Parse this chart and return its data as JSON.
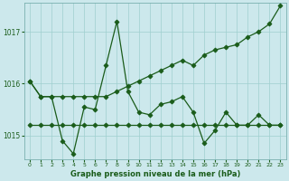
{
  "background_color": "#cce8ec",
  "plot_bg_color": "#cce8ec",
  "line_color": "#1a5c1a",
  "grid_color": "#9fcfcf",
  "xlabel": "Graphe pression niveau de la mer (hPa)",
  "ylim": [
    1014.55,
    1017.55
  ],
  "xlim": [
    -0.5,
    23.5
  ],
  "yticks": [
    1015,
    1016,
    1017
  ],
  "xticks": [
    0,
    1,
    2,
    3,
    4,
    5,
    6,
    7,
    8,
    9,
    10,
    11,
    12,
    13,
    14,
    15,
    16,
    17,
    18,
    19,
    20,
    21,
    22,
    23
  ],
  "series": [
    {
      "x": [
        0,
        1,
        2,
        3,
        4,
        5,
        6,
        7,
        8,
        9,
        10,
        11,
        12,
        13,
        14,
        15,
        16,
        17,
        18,
        19,
        20,
        21,
        22,
        23
      ],
      "y": [
        1015.2,
        1015.2,
        1015.2,
        1015.2,
        1015.2,
        1015.2,
        1015.2,
        1015.2,
        1015.2,
        1015.2,
        1015.2,
        1015.2,
        1015.2,
        1015.2,
        1015.2,
        1015.2,
        1015.2,
        1015.2,
        1015.2,
        1015.2,
        1015.2,
        1015.2,
        1015.2,
        1015.2
      ],
      "marker": "D",
      "markersize": 2.5,
      "linewidth": 0.9,
      "markevery": 1
    },
    {
      "x": [
        0,
        1,
        2,
        3,
        4,
        5,
        6,
        7,
        8,
        9,
        10,
        11,
        12,
        13,
        14,
        15,
        16,
        17,
        18,
        19,
        20,
        21,
        22,
        23
      ],
      "y": [
        1016.05,
        1015.75,
        1015.75,
        1014.9,
        1014.65,
        1015.55,
        1015.5,
        1016.35,
        1017.2,
        1015.85,
        1015.45,
        1015.4,
        1015.6,
        1015.65,
        1015.75,
        1015.45,
        1014.85,
        1015.1,
        1015.45,
        1015.2,
        1015.2,
        1015.4,
        1015.2,
        1015.2
      ],
      "marker": "D",
      "markersize": 2.5,
      "linewidth": 0.9,
      "markevery": 1
    },
    {
      "x": [
        0,
        1,
        2,
        3,
        4,
        5,
        6,
        7,
        8,
        9,
        10,
        11,
        12,
        13,
        14,
        15,
        16,
        17,
        18,
        19,
        20,
        21,
        22,
        23
      ],
      "y": [
        1016.05,
        1015.75,
        1015.75,
        1015.75,
        1015.75,
        1015.75,
        1015.75,
        1015.75,
        1015.85,
        1015.95,
        1016.05,
        1016.15,
        1016.25,
        1016.35,
        1016.45,
        1016.35,
        1016.55,
        1016.65,
        1016.7,
        1016.75,
        1016.9,
        1017.0,
        1017.15,
        1017.5
      ],
      "marker": "D",
      "markersize": 2.5,
      "linewidth": 0.9,
      "markevery": 1
    }
  ]
}
